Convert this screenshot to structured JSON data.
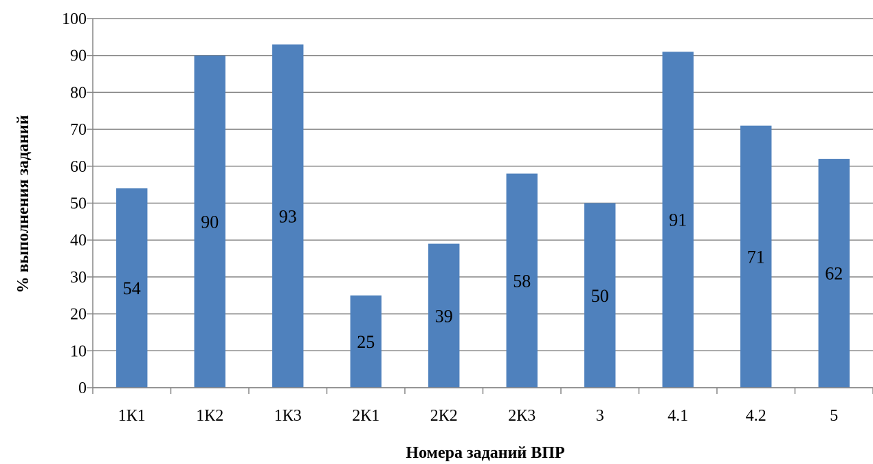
{
  "chart_data": {
    "type": "bar",
    "categories": [
      "1К1",
      "1К2",
      "1К3",
      "2К1",
      "2К2",
      "2К3",
      "3",
      "4.1",
      "4.2",
      "5"
    ],
    "values": [
      54,
      90,
      93,
      25,
      39,
      58,
      50,
      91,
      71,
      62
    ],
    "bar_labels": [
      "54",
      "90",
      "93",
      "25",
      "39",
      "58",
      "50",
      "91",
      "71",
      "62"
    ],
    "xlabel": "Номера заданий ВПР",
    "ylabel": "% выполнения заданий",
    "ylim": [
      0,
      100
    ],
    "yticks": [
      0,
      10,
      20,
      30,
      40,
      50,
      60,
      70,
      80,
      90,
      100
    ],
    "grid": true,
    "bar_color": "#4f81bd",
    "grid_color": "#868686"
  }
}
